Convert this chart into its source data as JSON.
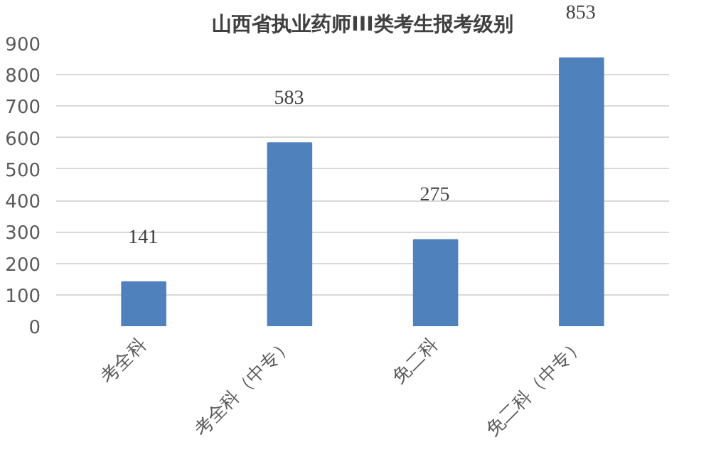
{
  "chart_data": {
    "type": "bar",
    "title": "山西省执业药师III类考生报考级别",
    "categories": [
      "考全科",
      "考全科（中专）",
      "免二科",
      "免二科（中专）"
    ],
    "values": [
      141,
      583,
      275,
      853
    ],
    "color": "#4f81bd",
    "ylim": [
      0,
      900
    ],
    "yticks": [
      0,
      100,
      200,
      300,
      400,
      500,
      600,
      700,
      800,
      900
    ],
    "grid": "y",
    "data_labels": true
  }
}
